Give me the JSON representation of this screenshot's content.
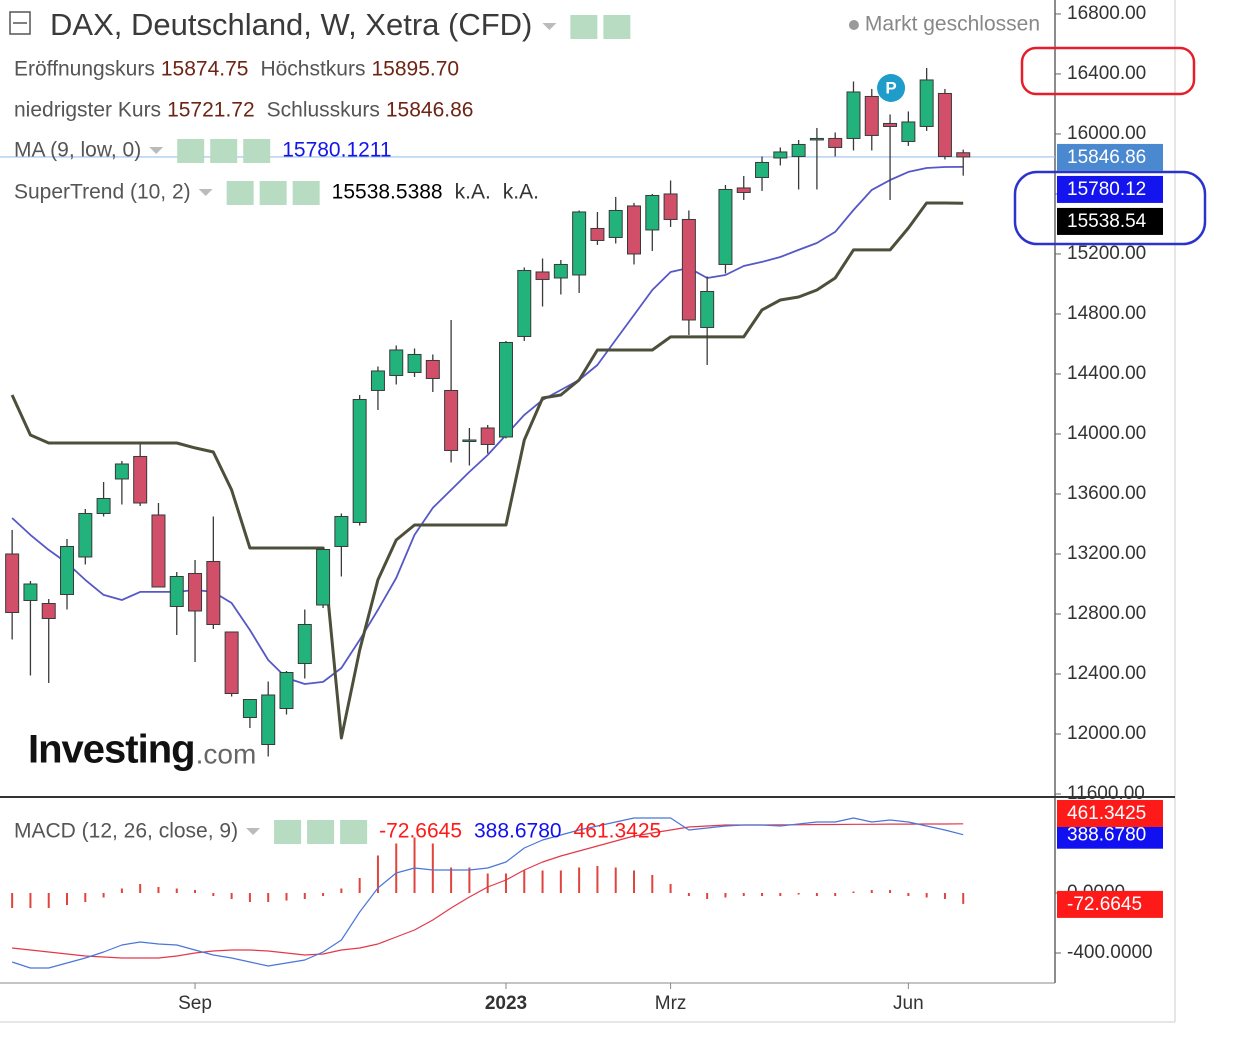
{
  "chart_data": [
    {
      "type": "candlestick",
      "title": "DAX, Deutschland, W, Xetra (CFD)",
      "status": "Markt geschlossen",
      "badge": "P",
      "watermark": {
        "brand": "Investing",
        "suffix": ".com"
      },
      "ohlc_legend": [
        {
          "label": "Eröffnungskurs",
          "value": "15874.75"
        },
        {
          "label": "Höchstkurs",
          "value": "15895.70"
        },
        {
          "label": "niedrigster Kurs",
          "value": "15721.72"
        },
        {
          "label": "Schlusskurs",
          "value": "15846.86"
        }
      ],
      "last_label": "15846.86",
      "last_label_color": "#4a88cf",
      "up_color": "#22b27c",
      "down_color": "#d24f69",
      "wick_color": "#3a3a3a",
      "categories": [
        null,
        null,
        null,
        null,
        null,
        null,
        null,
        null,
        null,
        null,
        "Sep",
        null,
        null,
        null,
        null,
        null,
        null,
        null,
        null,
        null,
        null,
        null,
        null,
        null,
        null,
        null,
        null,
        "2023",
        null,
        null,
        null,
        null,
        null,
        null,
        null,
        null,
        "Mrz",
        null,
        null,
        null,
        null,
        null,
        null,
        null,
        null,
        null,
        null,
        null,
        null,
        "Jun",
        null,
        null,
        null
      ],
      "open": [
        13200,
        12890,
        12870,
        12930,
        13180,
        13470,
        13700,
        13850,
        13460,
        12850,
        13070,
        13150,
        12680,
        12110,
        11930,
        12170,
        12470,
        12860,
        13250,
        13410,
        14290,
        14390,
        14410,
        14490,
        14290,
        13950,
        14040,
        13980,
        14650,
        15080,
        15040,
        15060,
        15370,
        15310,
        15520,
        15360,
        15600,
        15430,
        14710,
        15130,
        15640,
        15710,
        15840,
        15850,
        15960,
        15970,
        15970,
        16250,
        16070,
        15950,
        16050,
        16270,
        15874.75
      ],
      "high": [
        13360,
        13020,
        12900,
        13300,
        13500,
        13680,
        13820,
        13930,
        13540,
        13080,
        13160,
        13450,
        12680,
        12230,
        12350,
        12420,
        12830,
        13240,
        13470,
        14260,
        14450,
        14590,
        14570,
        14530,
        14760,
        14040,
        14060,
        14620,
        15110,
        15170,
        15160,
        15490,
        15480,
        15580,
        15540,
        15600,
        15690,
        15490,
        15050,
        15660,
        15720,
        15850,
        15910,
        15960,
        16040,
        16010,
        16350,
        16300,
        16130,
        16150,
        16440,
        16300,
        15895.7
      ],
      "low": [
        12630,
        12390,
        12340,
        12830,
        13130,
        13450,
        13530,
        13520,
        12980,
        12660,
        12480,
        12700,
        12250,
        12040,
        11850,
        12130,
        12370,
        12840,
        13050,
        13390,
        14160,
        14330,
        14380,
        14280,
        13810,
        13790,
        13870,
        13970,
        14620,
        14850,
        14930,
        14940,
        15260,
        15270,
        15130,
        15220,
        15380,
        14660,
        14460,
        15070,
        15560,
        15620,
        15790,
        15630,
        15630,
        15850,
        15890,
        15890,
        15560,
        15920,
        16020,
        15830,
        15721.72
      ],
      "close": [
        12810,
        13000,
        12770,
        13250,
        13470,
        13570,
        13800,
        13540,
        12980,
        13050,
        12820,
        12730,
        12270,
        12230,
        12260,
        12410,
        12730,
        13230,
        13450,
        14230,
        14420,
        14560,
        14530,
        14370,
        13890,
        13960,
        13930,
        14610,
        15090,
        15030,
        15130,
        15480,
        15290,
        15490,
        15200,
        15590,
        15430,
        14760,
        14950,
        15630,
        15610,
        15810,
        15880,
        15930,
        15970,
        15910,
        16280,
        15990,
        16050,
        16080,
        16360,
        15850,
        15846.86
      ],
      "lines": [
        {
          "name": "MA (9, low, 0)",
          "color": "#5558c6",
          "label_color": "#1414ee",
          "value_label": "15780.1211",
          "axis_label": "15780.12",
          "values": [
            13440,
            13327,
            13227,
            13140,
            13027,
            12927,
            12893,
            12947,
            12947,
            12947,
            12960,
            12947,
            12873,
            12693,
            12493,
            12373,
            12333,
            12347,
            12440,
            12627,
            12827,
            13040,
            13327,
            13507,
            13627,
            13747,
            13860,
            13993,
            14127,
            14227,
            14293,
            14360,
            14460,
            14627,
            14793,
            14960,
            15080,
            15107,
            15040,
            15060,
            15120,
            15147,
            15180,
            15227,
            15273,
            15347,
            15493,
            15627,
            15693,
            15747,
            15773,
            15780,
            15780.12
          ]
        },
        {
          "name": "SuperTrend (10, 2)",
          "color": "#4d4f3b",
          "label_color": "#000000",
          "value_label": "15538.5388",
          "extra_labels": [
            "k.A.",
            "k.A."
          ],
          "axis_label": "15538.54",
          "values": [
            14260,
            13993,
            13940,
            13940,
            13940,
            13940,
            13940,
            13940,
            13940,
            13940,
            13907,
            13880,
            13627,
            13240,
            13240,
            13240,
            13240,
            13240,
            11973,
            12560,
            13027,
            13293,
            13393,
            13393,
            13393,
            13393,
            13393,
            13393,
            13960,
            14240,
            14260,
            14360,
            14560,
            14560,
            14560,
            14560,
            14647,
            14647,
            14647,
            14647,
            14647,
            14827,
            14893,
            14913,
            14960,
            15040,
            15227,
            15227,
            15227,
            15373,
            15540,
            15540,
            15538.54
          ]
        }
      ],
      "ylim": [
        11580,
        16893
      ],
      "yticks": [
        {
          "value": 16800,
          "label": "16800.00"
        },
        {
          "value": 16400,
          "label": "16400.00"
        },
        {
          "value": 16000,
          "label": "16000.00"
        },
        {
          "value": 15600,
          "label": "15600.00"
        },
        {
          "value": 15200,
          "label": "15200.00"
        },
        {
          "value": 14800,
          "label": "14800.00"
        },
        {
          "value": 14400,
          "label": "14400.00"
        },
        {
          "value": 14000,
          "label": "14000.00"
        },
        {
          "value": 13600,
          "label": "13600.00"
        },
        {
          "value": 13200,
          "label": "13200.00"
        },
        {
          "value": 12800,
          "label": "12800.00"
        },
        {
          "value": 12400,
          "label": "12400.00"
        },
        {
          "value": 12000,
          "label": "12000.00"
        },
        {
          "value": 11600,
          "label": "11600.00"
        }
      ],
      "grid": false
    },
    {
      "type": "macd",
      "title": "MACD (12, 26, close, 9)",
      "histogram": {
        "color": "#e0443c",
        "label_color": "#ff1a1a",
        "value_label": "-72.6645",
        "values": [
          -100,
          -100,
          -100,
          -80,
          -60,
          -30,
          30,
          60,
          40,
          30,
          20,
          -20,
          -40,
          -60,
          -60,
          -50,
          -40,
          -20,
          30,
          100,
          250,
          330,
          370,
          330,
          170,
          170,
          130,
          130,
          150,
          150,
          150,
          170,
          180,
          170,
          150,
          120,
          60,
          -20,
          -40,
          -30,
          -20,
          -20,
          -20,
          -10,
          -20,
          -20,
          10,
          20,
          20,
          -20,
          -30,
          -40,
          -72.6645
        ]
      },
      "macd": {
        "color": "#4a76d8",
        "label_color": "#1010f0",
        "value_label": "388.6780",
        "values": [
          -460,
          -500,
          -500,
          -467,
          -433,
          -393,
          -347,
          -327,
          -340,
          -347,
          -380,
          -413,
          -433,
          -460,
          -487,
          -467,
          -447,
          -393,
          -313,
          -127,
          33,
          133,
          167,
          153,
          153,
          153,
          167,
          207,
          300,
          353,
          387,
          420,
          447,
          473,
          500,
          500,
          500,
          420,
          433,
          447,
          453,
          453,
          447,
          460,
          473,
          473,
          500,
          473,
          487,
          473,
          447,
          420,
          388.678
        ]
      },
      "signal": {
        "color": "#e2394a",
        "label_color": "#ff1a1a",
        "value_label": "461.3425",
        "values": [
          -367,
          -380,
          -393,
          -407,
          -420,
          -427,
          -433,
          -433,
          -433,
          -420,
          -400,
          -387,
          -380,
          -380,
          -387,
          -400,
          -413,
          -407,
          -380,
          -367,
          -340,
          -293,
          -247,
          -180,
          -100,
          -27,
          40,
          87,
          153,
          207,
          247,
          280,
          313,
          347,
          380,
          400,
          420,
          440,
          447,
          453,
          453,
          453,
          455,
          455,
          457,
          457,
          458,
          458,
          459,
          459,
          460,
          460,
          461.3425
        ]
      },
      "ylim": [
        -600,
        620
      ],
      "yticks": [
        {
          "value": 0,
          "label": "0.0000"
        },
        {
          "value": -400,
          "label": "-400.0000"
        }
      ]
    }
  ]
}
